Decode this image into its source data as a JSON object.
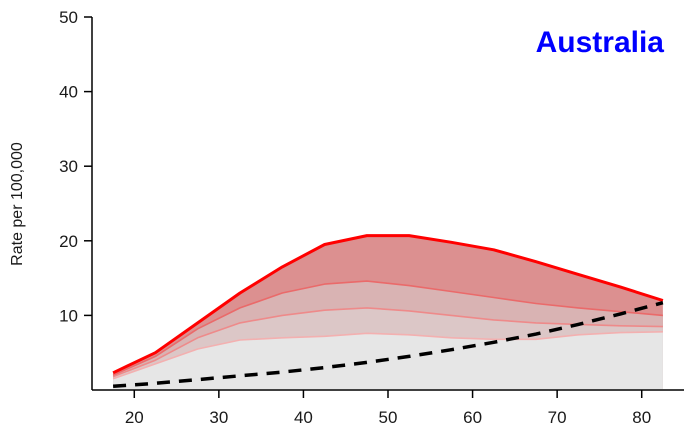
{
  "chart_data": {
    "type": "area",
    "title": "Australia",
    "title_color": "#0000ff",
    "xlabel": "",
    "ylabel": "Rate per 100,000",
    "xlim": [
      15,
      85
    ],
    "ylim": [
      0,
      50
    ],
    "xticks": [
      20,
      30,
      40,
      50,
      60,
      70,
      80
    ],
    "yticks": [
      10,
      20,
      30,
      40,
      50
    ],
    "grid": false,
    "x": [
      17.5,
      22.5,
      27.5,
      32.5,
      37.5,
      42.5,
      47.5,
      52.5,
      57.5,
      62.5,
      67.5,
      72.5,
      77.5,
      82.5
    ],
    "bands": [
      {
        "values": [
          1.5,
          3.5,
          5.5,
          6.7,
          7.0,
          7.2,
          7.6,
          7.4,
          7.0,
          6.8,
          6.8,
          7.4,
          7.7,
          7.8
        ],
        "fill": "#e6e6e6",
        "line": "#f3b0b0"
      },
      {
        "values": [
          1.8,
          4.0,
          7.0,
          9.0,
          10.0,
          10.7,
          11.0,
          10.6,
          10.0,
          9.4,
          9.0,
          8.8,
          8.6,
          8.5
        ],
        "fill": "#dcc7c7",
        "line": "#ee8a8a"
      },
      {
        "values": [
          2.0,
          4.5,
          8.2,
          11.0,
          13.0,
          14.2,
          14.6,
          14.0,
          13.2,
          12.4,
          11.6,
          11.0,
          10.5,
          10.0
        ],
        "fill": "#d9b3b3",
        "line": "#ea6a6a"
      },
      {
        "values": [
          2.3,
          5.0,
          9.0,
          13.0,
          16.5,
          19.5,
          20.7,
          20.7,
          19.8,
          18.8,
          17.2,
          15.5,
          13.8,
          12.0
        ],
        "fill": "#dc9090",
        "line": "#ff0000"
      }
    ],
    "dashed_series": {
      "x": [
        17.5,
        22.5,
        27.5,
        32.5,
        37.5,
        42.5,
        47.5,
        52.5,
        57.5,
        62.5,
        67.5,
        72.5,
        77.5,
        82.5
      ],
      "values": [
        0.5,
        0.9,
        1.4,
        1.9,
        2.4,
        3.0,
        3.7,
        4.5,
        5.4,
        6.4,
        7.5,
        8.8,
        10.2,
        11.7
      ],
      "color": "#000000"
    }
  }
}
